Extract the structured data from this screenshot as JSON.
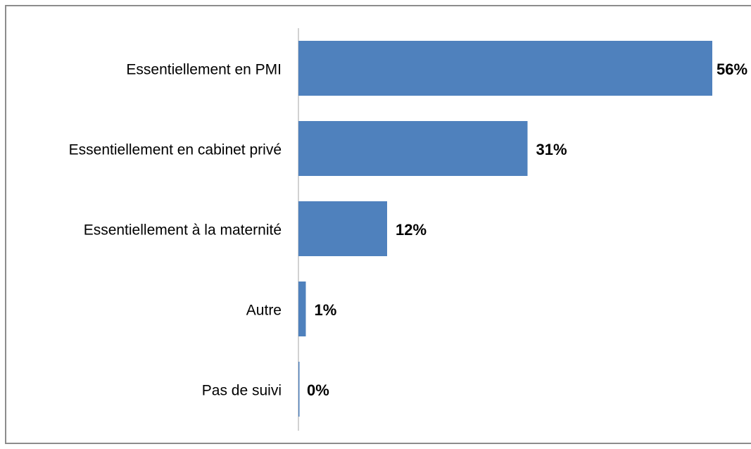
{
  "chart_data": {
    "type": "barh",
    "categories": [
      "Essentiellement en PMI",
      "Essentiellement en cabinet privé",
      "Essentiellement à la maternité",
      "Autre",
      "Pas de suivi"
    ],
    "values": [
      56,
      31,
      12,
      1,
      0
    ],
    "value_labels": [
      "56%",
      "31%",
      "12%",
      "1%",
      "0%"
    ],
    "color": "#4f81bd"
  }
}
